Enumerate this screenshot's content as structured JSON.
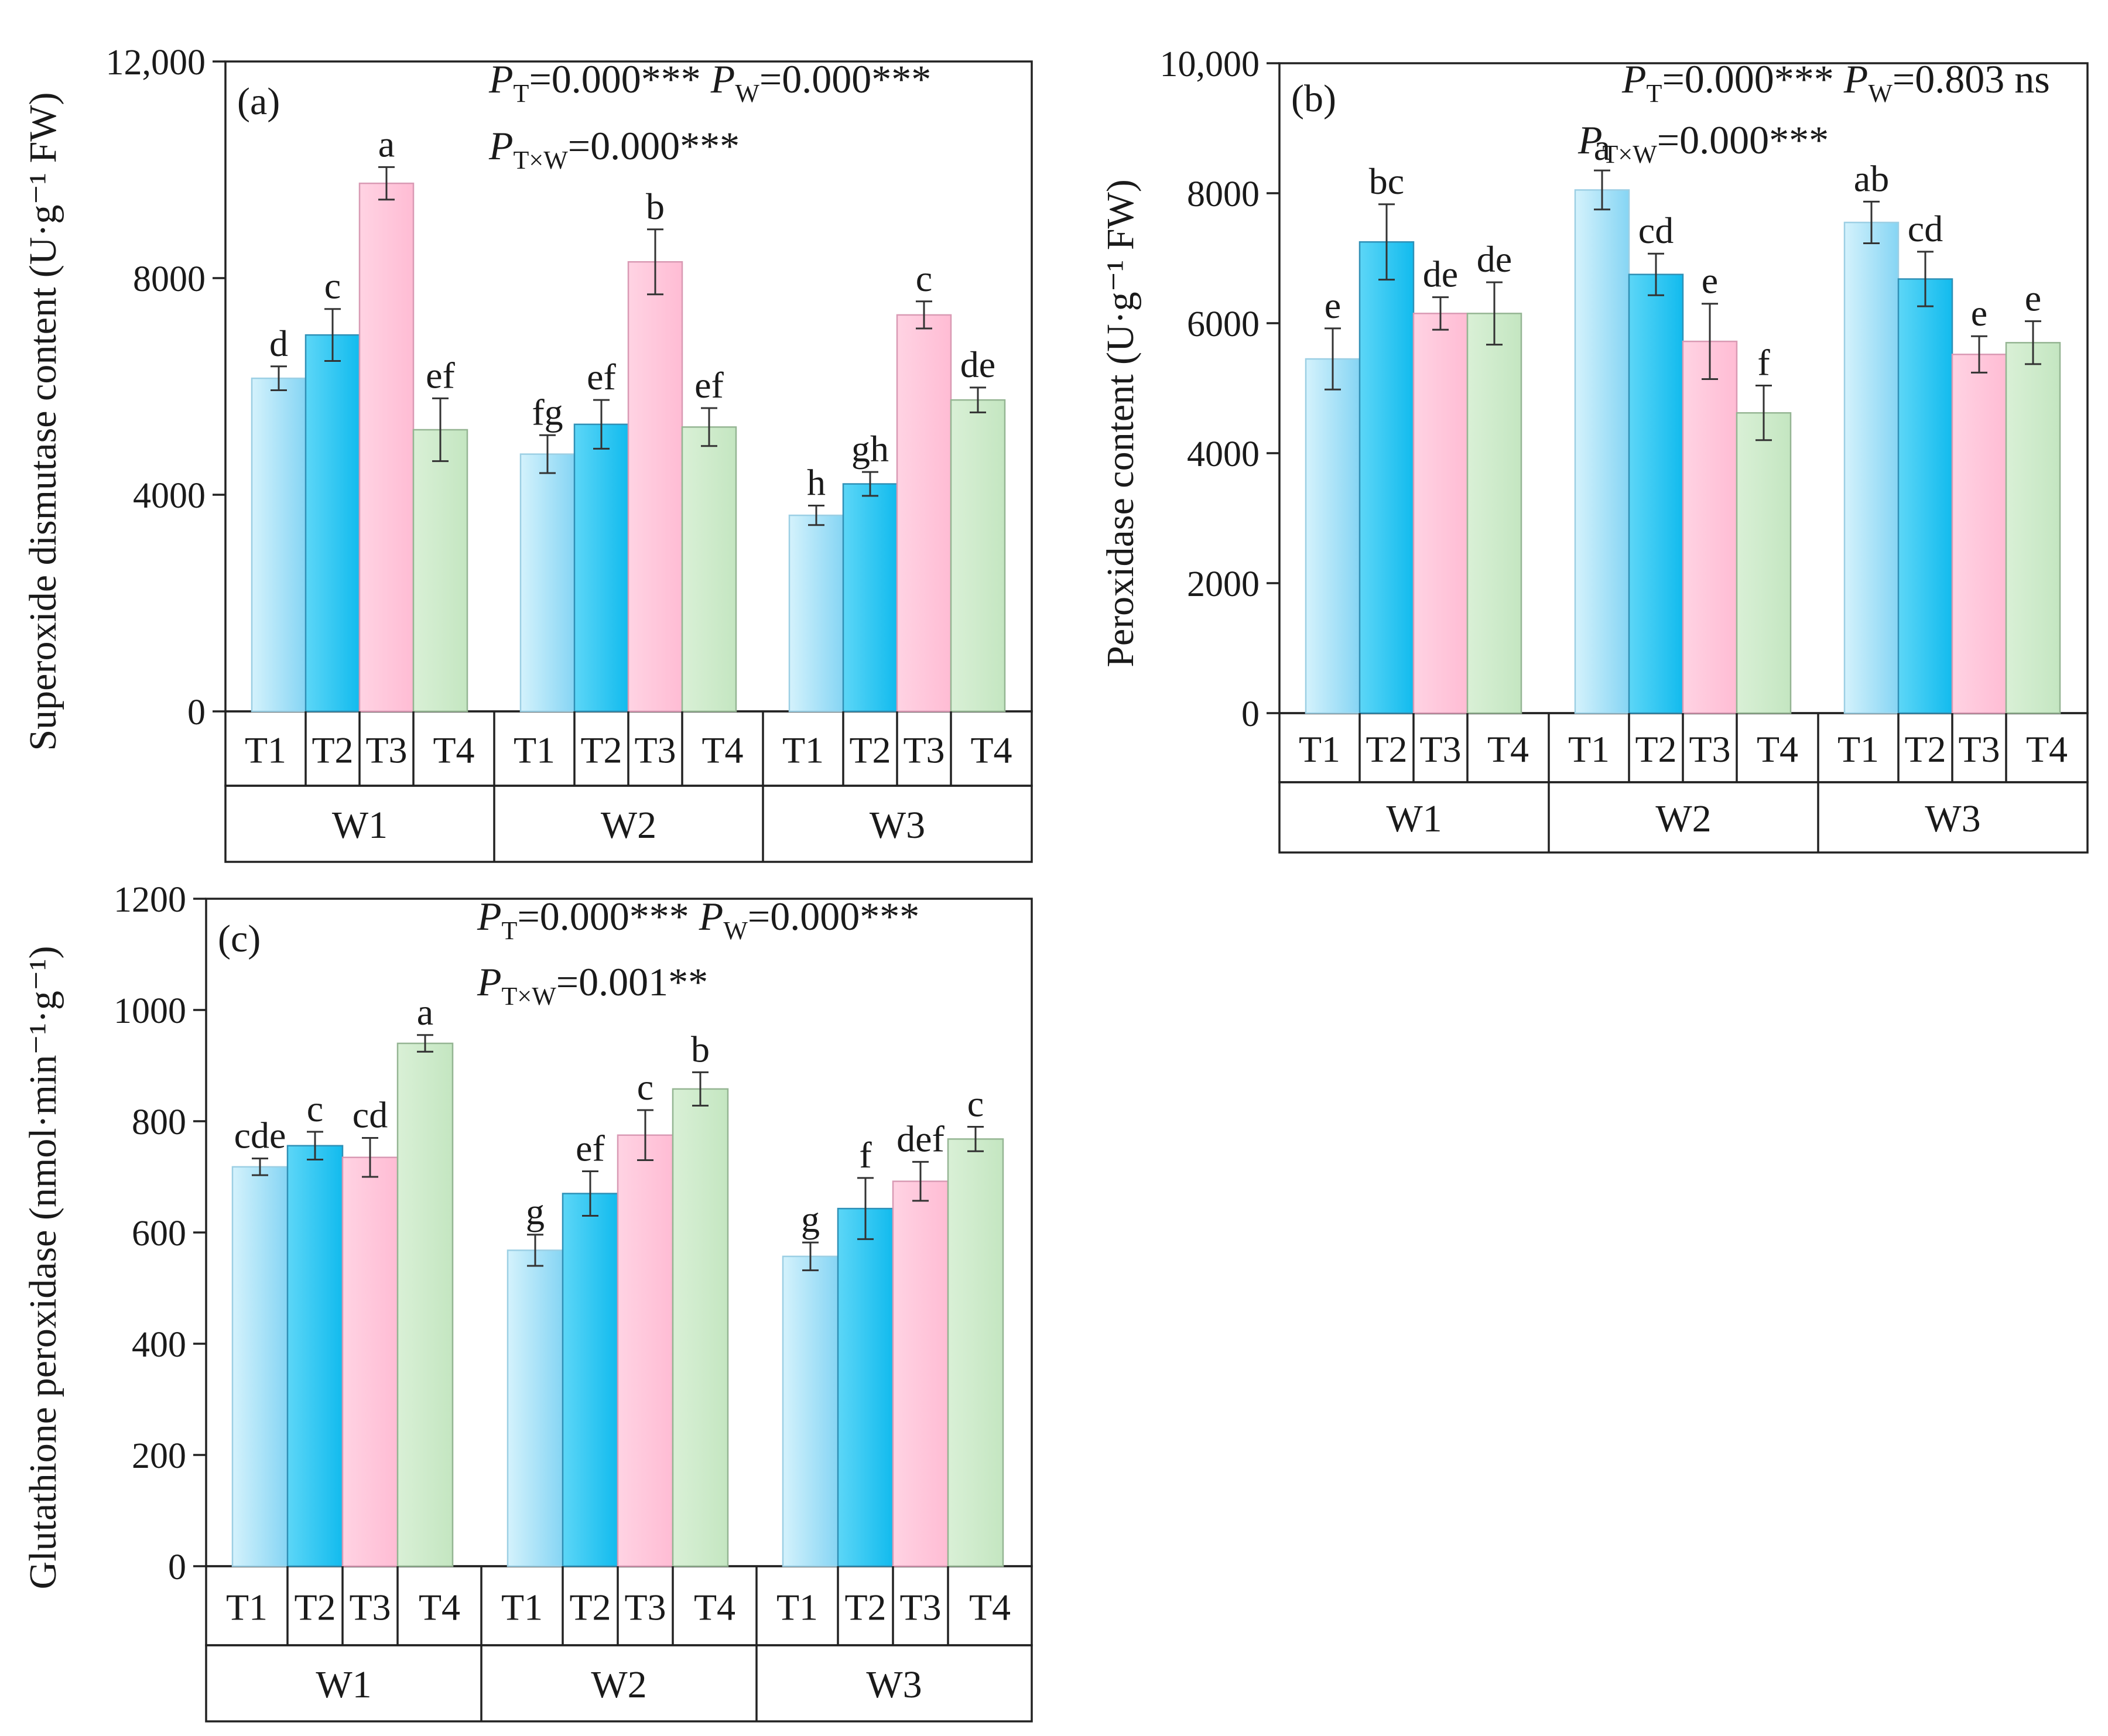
{
  "chart_data": [
    {
      "id": "a",
      "type": "bar",
      "panel_label": "(a)",
      "ylabel": "Superoxide dismutase content (U·g⁻¹ FW)",
      "ylim": [
        0,
        12000
      ],
      "yticks": [
        0,
        4000,
        8000,
        12000
      ],
      "ytick_labels": [
        "0",
        "4000",
        "8000",
        "12,000"
      ],
      "stats": [
        {
          "p": "P",
          "sub": "T",
          "val": "=0.000***"
        },
        {
          "p": "P",
          "sub": "W",
          "val": "=0.000***"
        },
        {
          "p": "P",
          "sub": "T×W",
          "val": "=0.000***"
        }
      ],
      "groups": [
        "W1",
        "W2",
        "W3"
      ],
      "categories": [
        "T1",
        "T2",
        "T3",
        "T4"
      ],
      "values": [
        [
          6150,
          6950,
          9750,
          5200
        ],
        [
          4750,
          5300,
          8300,
          5250
        ],
        [
          3620,
          4200,
          7320,
          5750
        ]
      ],
      "errors": [
        [
          220,
          480,
          300,
          580
        ],
        [
          350,
          450,
          600,
          350
        ],
        [
          180,
          220,
          250,
          230
        ]
      ],
      "letters": [
        [
          "d",
          "c",
          "a",
          "ef"
        ],
        [
          "fg",
          "ef",
          "b",
          "ef"
        ],
        [
          "h",
          "gh",
          "c",
          "de"
        ]
      ]
    },
    {
      "id": "b",
      "type": "bar",
      "panel_label": "(b)",
      "ylabel": "Peroxidase content (U·g⁻¹ FW)",
      "ylim": [
        0,
        10000
      ],
      "yticks": [
        0,
        2000,
        4000,
        6000,
        8000,
        10000
      ],
      "ytick_labels": [
        "0",
        "2000",
        "4000",
        "6000",
        "8000",
        "10,000"
      ],
      "stats": [
        {
          "p": "P",
          "sub": "T",
          "val": "=0.000***"
        },
        {
          "p": "P",
          "sub": "W",
          "val": "=0.803 ns"
        },
        {
          "p": "P",
          "sub": "T×W",
          "val": "=0.000***"
        }
      ],
      "groups": [
        "W1",
        "W2",
        "W3"
      ],
      "categories": [
        "T1",
        "T2",
        "T3",
        "T4"
      ],
      "values": [
        [
          5450,
          7250,
          6150,
          6150
        ],
        [
          8050,
          6750,
          5720,
          4620
        ],
        [
          7550,
          6680,
          5520,
          5700
        ]
      ],
      "errors": [
        [
          470,
          580,
          250,
          480
        ],
        [
          300,
          320,
          580,
          420
        ],
        [
          320,
          420,
          280,
          330
        ]
      ],
      "letters": [
        [
          "e",
          "bc",
          "de",
          "de"
        ],
        [
          "a",
          "cd",
          "e",
          "f"
        ],
        [
          "ab",
          "cd",
          "e",
          "e"
        ]
      ]
    },
    {
      "id": "c",
      "type": "bar",
      "panel_label": "(c)",
      "ylabel": "Glutathione peroxidase (nmol·min⁻¹·g⁻¹)",
      "ylim": [
        0,
        1200
      ],
      "yticks": [
        0,
        200,
        400,
        600,
        800,
        1000,
        1200
      ],
      "ytick_labels": [
        "0",
        "200",
        "400",
        "600",
        "800",
        "1000",
        "1200"
      ],
      "stats": [
        {
          "p": "P",
          "sub": "T",
          "val": "=0.000***"
        },
        {
          "p": "P",
          "sub": "W",
          "val": "=0.000***"
        },
        {
          "p": "P",
          "sub": "T×W",
          "val": "=0.001**"
        }
      ],
      "groups": [
        "W1",
        "W2",
        "W3"
      ],
      "categories": [
        "T1",
        "T2",
        "T3",
        "T4"
      ],
      "values": [
        [
          718,
          756,
          735,
          940
        ],
        [
          568,
          670,
          775,
          858
        ],
        [
          557,
          643,
          692,
          768
        ]
      ],
      "errors": [
        [
          15,
          25,
          35,
          15
        ],
        [
          28,
          40,
          45,
          30
        ],
        [
          25,
          55,
          35,
          22
        ]
      ],
      "letters": [
        [
          "cde",
          "c",
          "cd",
          "a"
        ],
        [
          "g",
          "ef",
          "c",
          "b"
        ],
        [
          "g",
          "f",
          "def",
          "c"
        ]
      ]
    }
  ],
  "colors": {
    "T1_top": "#c3ecfb",
    "T1_bottom": "#8fd8f5",
    "T2_top": "#4ed2f6",
    "T2_bottom": "#19bff0",
    "T3": "#ffc7dc",
    "T4": "#cfeccd"
  }
}
